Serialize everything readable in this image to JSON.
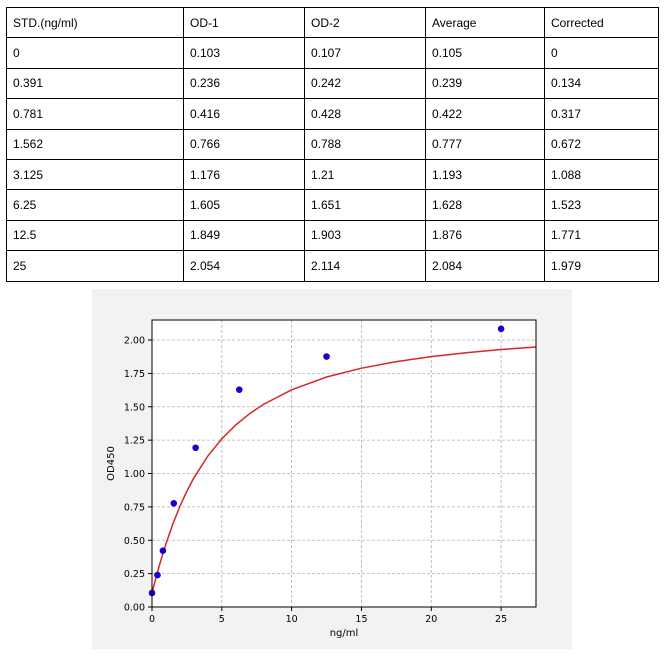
{
  "table": {
    "headers": [
      "STD.(ng/ml)",
      "OD-1",
      "OD-2",
      "Average",
      "Corrected"
    ],
    "rows": [
      [
        "0",
        "0.103",
        "0.107",
        "0.105",
        "0"
      ],
      [
        "0.391",
        "0.236",
        "0.242",
        "0.239",
        "0.134"
      ],
      [
        "0.781",
        "0.416",
        "0.428",
        "0.422",
        "0.317"
      ],
      [
        "1.562",
        "0.766",
        "0.788",
        "0.777",
        "0.672"
      ],
      [
        "3.125",
        "1.176",
        "1.21",
        "1.193",
        "1.088"
      ],
      [
        "6.25",
        "1.605",
        "1.651",
        "1.628",
        "1.523"
      ],
      [
        "12.5",
        "1.849",
        "1.903",
        "1.876",
        "1.771"
      ],
      [
        "25",
        "2.054",
        "2.114",
        "2.084",
        "1.979"
      ]
    ]
  },
  "chart_data": {
    "type": "scatter",
    "title": "",
    "xlabel": "ng/ml",
    "ylabel": "OD450",
    "xlim": [
      0,
      27.5
    ],
    "ylim": [
      0,
      2.15
    ],
    "xticks": [
      0,
      5,
      10,
      15,
      20,
      25
    ],
    "xtick_labels": [
      "0",
      "5",
      "10",
      "15",
      "20",
      "25"
    ],
    "yticks": [
      0,
      0.25,
      0.5,
      0.75,
      1.0,
      1.25,
      1.5,
      1.75,
      2.0
    ],
    "ytick_labels": [
      "0.00",
      "0.25",
      "0.50",
      "0.75",
      "1.00",
      "1.25",
      "1.50",
      "1.75",
      "2.00"
    ],
    "grid": true,
    "series": [
      {
        "type": "scatter",
        "color": "#1a00cc",
        "x": [
          0,
          0.391,
          0.781,
          1.562,
          3.125,
          6.25,
          12.5,
          25
        ],
        "y": [
          0.105,
          0.239,
          0.422,
          0.777,
          1.193,
          1.628,
          1.876,
          2.084
        ]
      },
      {
        "type": "line",
        "color": "#d62728",
        "x": [
          0,
          0.25,
          0.5,
          0.75,
          1,
          1.5,
          2,
          2.5,
          3,
          4,
          5,
          6,
          7,
          8,
          10,
          12.5,
          15,
          17.5,
          20,
          22.5,
          25,
          27.5
        ],
        "y": [
          0.105,
          0.205,
          0.301,
          0.391,
          0.473,
          0.624,
          0.754,
          0.868,
          0.967,
          1.131,
          1.26,
          1.364,
          1.449,
          1.519,
          1.627,
          1.723,
          1.789,
          1.838,
          1.876,
          1.905,
          1.929,
          1.948
        ]
      }
    ]
  }
}
